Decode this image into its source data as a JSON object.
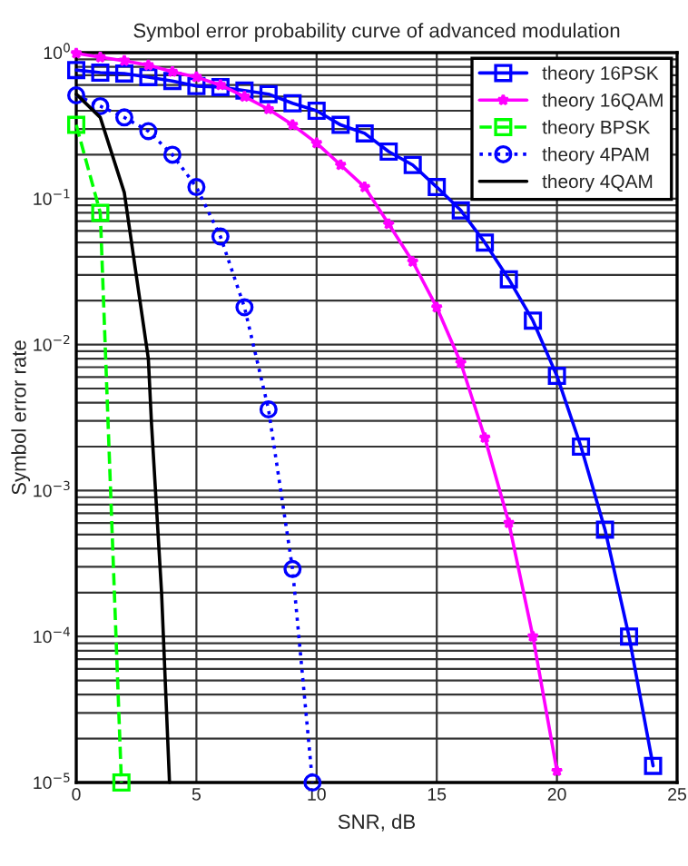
{
  "chart_data": {
    "type": "line",
    "title": "Symbol error probability curve of advanced modulation",
    "xlabel": "SNR, dB",
    "ylabel": "Symbol error rate",
    "log": "y",
    "grid": true,
    "legend": "top right",
    "xlim": [
      0,
      25
    ],
    "xticks": [
      0,
      5,
      10,
      15,
      20,
      25
    ],
    "ylim": [
      1e-05,
      1
    ],
    "yticks": [
      {
        "value": 1e-05,
        "label": "10$^{−5}$"
      },
      {
        "value": 0.0001,
        "label": "10$^{−4}$"
      },
      {
        "value": 0.001,
        "label": "10$^{−3}$"
      },
      {
        "value": 0.01,
        "label": "10$^{−2}$"
      },
      {
        "value": 0.1,
        "label": "10$^{−1}$"
      },
      {
        "value": 1,
        "label": "10$^{0}$"
      }
    ],
    "series": [
      {
        "name": "theory 16PSK",
        "color": "#0000ff",
        "marker": "square",
        "line_style": "solid",
        "x": [
          0,
          1,
          2,
          3,
          4,
          5,
          6,
          7,
          8,
          9,
          10,
          11,
          12,
          13,
          14,
          15,
          16,
          17,
          18,
          19,
          20,
          21,
          22,
          23,
          24
        ],
        "values": [
          0.76,
          0.73,
          0.72,
          0.68,
          0.64,
          0.59,
          0.58,
          0.55,
          0.52,
          0.45,
          0.4,
          0.32,
          0.28,
          0.21,
          0.17,
          0.12,
          0.083,
          0.05,
          0.028,
          0.0146,
          0.0061,
          0.002,
          0.00054,
          0.0001,
          1.3e-05
        ]
      },
      {
        "name": "theory 16QAM",
        "color": "#ff00ff",
        "marker": "star",
        "line_style": "solid",
        "x": [
          0,
          1,
          2,
          3,
          4,
          5,
          6,
          7,
          8,
          9,
          10,
          11,
          12,
          13,
          14,
          15,
          16,
          17,
          18,
          19,
          20
        ],
        "values": [
          0.99,
          0.93,
          0.88,
          0.82,
          0.74,
          0.68,
          0.6,
          0.5,
          0.41,
          0.32,
          0.24,
          0.17,
          0.12,
          0.067,
          0.037,
          0.018,
          0.0075,
          0.0023,
          0.0006,
          0.0001,
          1.2e-05
        ]
      },
      {
        "name": "theory BPSK",
        "color": "#00ff00",
        "marker": "square",
        "line_style": "dashed",
        "x": [
          0,
          1,
          1.88
        ],
        "values": [
          0.32,
          0.08,
          1e-05
        ]
      },
      {
        "name": "theory 4PAM",
        "color": "#0000ff",
        "marker": "circle",
        "line_style": "dotted",
        "x": [
          0,
          1,
          2,
          3,
          4,
          5,
          6,
          7,
          8,
          9,
          9.83
        ],
        "values": [
          0.51,
          0.43,
          0.36,
          0.29,
          0.2,
          0.12,
          0.055,
          0.018,
          0.0036,
          0.00029,
          1e-05
        ]
      },
      {
        "name": "theory 4QAM",
        "color": "#000000",
        "marker": "none",
        "line_style": "solid",
        "x": [
          0,
          1,
          2,
          3,
          3.13,
          3.55,
          3.88
        ],
        "values": [
          0.52,
          0.36,
          0.11,
          0.008,
          0.0029,
          0.0002,
          1e-05
        ]
      }
    ]
  }
}
